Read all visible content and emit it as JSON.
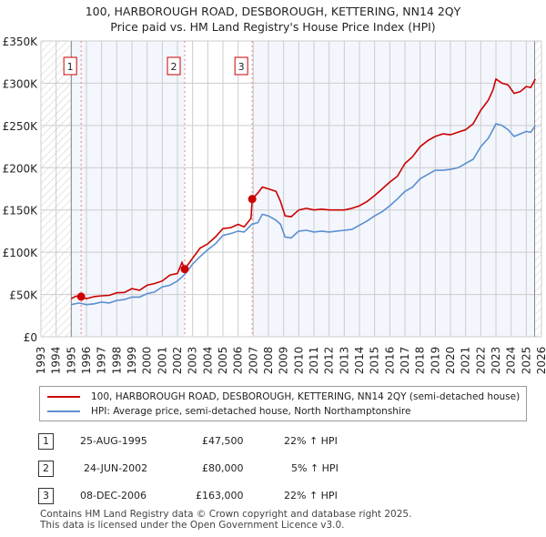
{
  "title": "100, HARBOROUGH ROAD, DESBOROUGH, KETTERING, NN14 2QY",
  "subtitle": "Price paid vs. HM Land Registry's House Price Index (HPI)",
  "chart_data": {
    "type": "line",
    "title": "100, HARBOROUGH ROAD, DESBOROUGH, KETTERING, NN14 2QY",
    "subtitle": "Price paid vs. HM Land Registry's House Price Index (HPI)",
    "xlim": [
      1993,
      2026
    ],
    "ylim": [
      0,
      350000
    ],
    "x_ticks": [
      "1993",
      "1994",
      "1995",
      "1996",
      "1997",
      "1998",
      "1999",
      "2000",
      "2001",
      "2002",
      "2003",
      "2004",
      "2005",
      "2006",
      "2007",
      "2008",
      "2009",
      "2010",
      "2011",
      "2012",
      "2013",
      "2014",
      "2015",
      "2016",
      "2017",
      "2018",
      "2019",
      "2020",
      "2021",
      "2022",
      "2023",
      "2024",
      "2025",
      "2026"
    ],
    "y_ticks": [
      {
        "v": 0,
        "label": "£0"
      },
      {
        "v": 50000,
        "label": "£50K"
      },
      {
        "v": 100000,
        "label": "£100K"
      },
      {
        "v": 150000,
        "label": "£150K"
      },
      {
        "v": 200000,
        "label": "£200K"
      },
      {
        "v": 250000,
        "label": "£250K"
      },
      {
        "v": 300000,
        "label": "£300K"
      },
      {
        "v": 350000,
        "label": "£350K"
      }
    ],
    "grid": true,
    "series": [
      {
        "name": "100, HARBOROUGH ROAD, DESBOROUGH, KETTERING, NN14 2QY (semi-detached house)",
        "color": "#cc0000",
        "x": [
          1995.0,
          1995.3,
          1995.65,
          1996,
          1996.5,
          1997,
          1997.5,
          1998,
          1998.5,
          1999,
          1999.5,
          2000,
          2000.5,
          2001,
          2001.5,
          2002,
          2002.3,
          2002.48,
          2003,
          2003.5,
          2004,
          2004.5,
          2005,
          2005.5,
          2006,
          2006.4,
          2006.85,
          2006.93,
          2007.3,
          2007.6,
          2008,
          2008.5,
          2008.8,
          2009.1,
          2009.5,
          2010,
          2010.5,
          2011,
          2011.5,
          2012,
          2012.5,
          2013,
          2013.5,
          2014,
          2014.5,
          2015,
          2015.5,
          2016,
          2016.5,
          2017,
          2017.5,
          2018,
          2018.5,
          2019,
          2019.5,
          2020,
          2020.5,
          2021,
          2021.5,
          2022,
          2022.5,
          2022.8,
          2023.0,
          2023.4,
          2023.8,
          2024.2,
          2024.6,
          2025.0,
          2025.3,
          2025.6
        ],
        "y": [
          45000,
          48000,
          47500,
          45000,
          47500,
          48500,
          49000,
          52000,
          52500,
          57000,
          55000,
          61000,
          63000,
          66000,
          73000,
          75000,
          88000,
          80000,
          93000,
          105000,
          110000,
          118000,
          128000,
          129000,
          133000,
          130000,
          140000,
          163000,
          170000,
          177000,
          175000,
          172000,
          160000,
          143000,
          142000,
          150000,
          152000,
          150000,
          151000,
          150000,
          150000,
          150000,
          152000,
          155000,
          160000,
          167000,
          175000,
          183000,
          190000,
          205000,
          213000,
          225000,
          232000,
          237000,
          240000,
          239000,
          242000,
          245000,
          252000,
          268000,
          280000,
          292000,
          305000,
          300000,
          298000,
          288000,
          290000,
          296000,
          295000,
          305000
        ]
      },
      {
        "name": "HPI: Average price, semi-detached house, North Northamptonshire",
        "color": "#5b8fd0",
        "x": [
          1995.0,
          1995.5,
          1996,
          1996.5,
          1997,
          1997.5,
          1998,
          1998.5,
          1999,
          1999.5,
          2000,
          2000.5,
          2001,
          2001.5,
          2002,
          2002.5,
          2003,
          2003.5,
          2004,
          2004.5,
          2005,
          2005.5,
          2006,
          2006.4,
          2006.9,
          2007.3,
          2007.6,
          2008,
          2008.5,
          2008.8,
          2009.1,
          2009.5,
          2010,
          2010.5,
          2011,
          2011.5,
          2012,
          2012.5,
          2013,
          2013.5,
          2014,
          2014.5,
          2015,
          2015.5,
          2016,
          2016.5,
          2017,
          2017.5,
          2018,
          2018.5,
          2019,
          2019.5,
          2020,
          2020.5,
          2021,
          2021.5,
          2022,
          2022.5,
          2022.8,
          2023.0,
          2023.4,
          2023.8,
          2024.2,
          2024.6,
          2025.0,
          2025.3,
          2025.6
        ],
        "y": [
          38000,
          40000,
          38000,
          39000,
          41000,
          40000,
          43000,
          44000,
          47000,
          47000,
          51000,
          53000,
          59000,
          61000,
          66000,
          74000,
          86000,
          95000,
          103000,
          110000,
          120000,
          122000,
          125000,
          124000,
          133000,
          135000,
          145000,
          143000,
          138000,
          133000,
          118000,
          117000,
          125000,
          126000,
          124000,
          125000,
          124000,
          125000,
          126000,
          127000,
          132000,
          137000,
          143000,
          148000,
          155000,
          163000,
          172000,
          177000,
          187000,
          192000,
          197000,
          197000,
          198000,
          200000,
          205000,
          210000,
          225000,
          235000,
          245000,
          252000,
          250000,
          245000,
          237000,
          240000,
          243000,
          242000,
          250000
        ]
      }
    ],
    "sales": [
      {
        "label": "1",
        "x": 1995.65,
        "y": 47500
      },
      {
        "label": "2",
        "x": 2002.48,
        "y": 80000
      },
      {
        "label": "3",
        "x": 2006.93,
        "y": 163000
      }
    ],
    "legend_position": "bottom"
  },
  "legend": [
    {
      "label": "100, HARBOROUGH ROAD, DESBOROUGH, KETTERING, NN14 2QY (semi-detached house)",
      "color": "#cc0000"
    },
    {
      "label": "HPI: Average price, semi-detached house, North Northamptonshire",
      "color": "#5b8fd0"
    }
  ],
  "transactions": [
    {
      "num": "1",
      "date": "25-AUG-1995",
      "price": "£47,500",
      "hpi": "22% ↑ HPI"
    },
    {
      "num": "2",
      "date": "24-JUN-2002",
      "price": "£80,000",
      "hpi": "5% ↑ HPI"
    },
    {
      "num": "3",
      "date": "08-DEC-2006",
      "price": "£163,000",
      "hpi": "22% ↑ HPI"
    }
  ],
  "footer": [
    "Contains HM Land Registry data © Crown copyright and database right 2025.",
    "This data is licensed under the Open Government Licence v3.0."
  ]
}
